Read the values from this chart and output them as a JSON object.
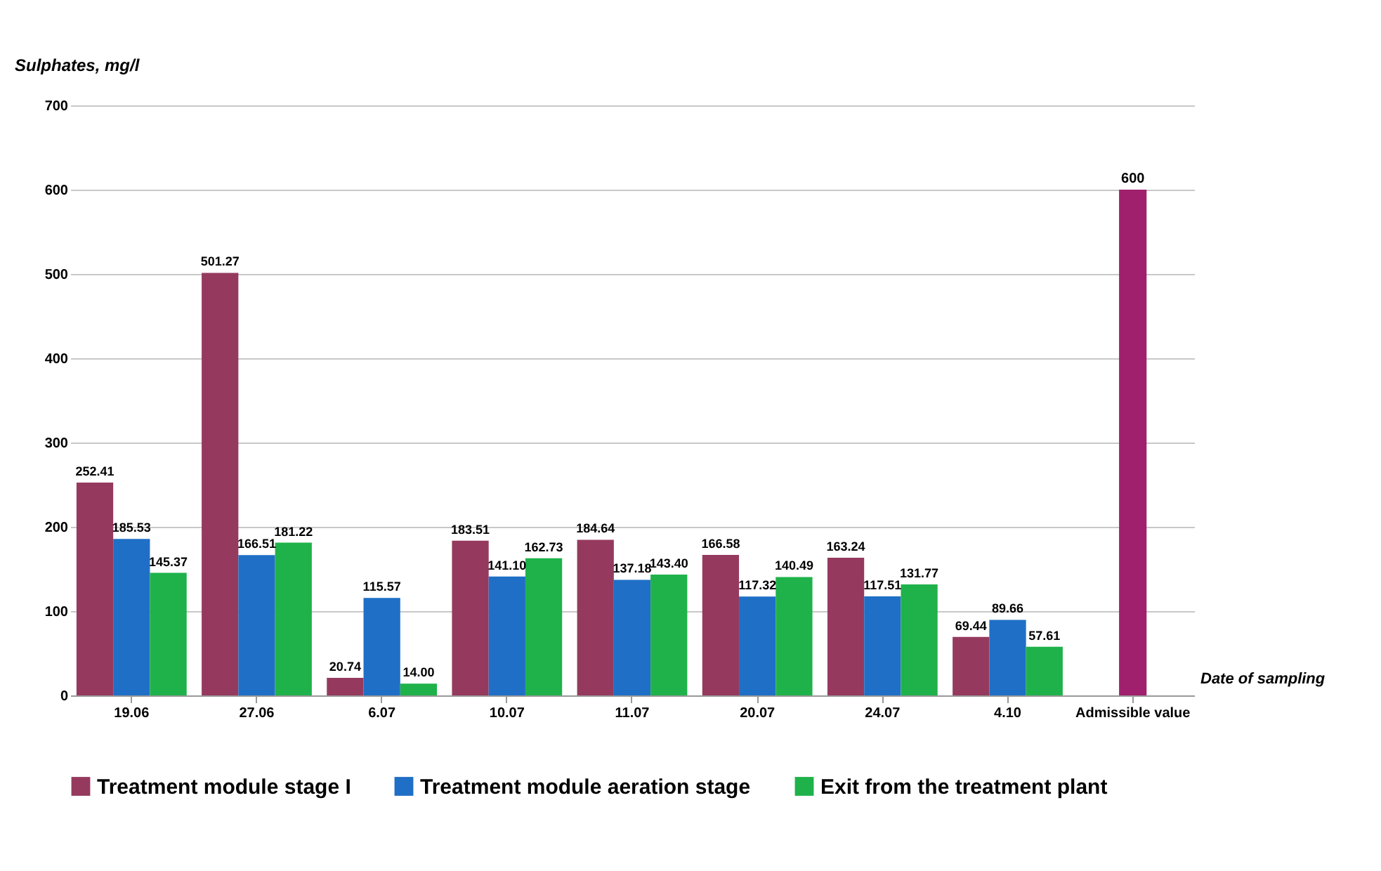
{
  "chart_data": {
    "type": "bar",
    "xlabel": "Date of sampling",
    "ylabel": "Sulphates, mg/l",
    "categories": [
      "19.06",
      "27.06",
      "6.07",
      "10.07",
      "11.07",
      "20.07",
      "24.07",
      "4.10",
      "Admissible value"
    ],
    "series": [
      {
        "name": "Treatment module stage I",
        "color": "#953a5e",
        "values": [
          252.41,
          501.27,
          20.74,
          183.51,
          184.64,
          166.58,
          163.24,
          69.44,
          null
        ],
        "value_labels": [
          "252.41",
          "501.27",
          "20.74",
          "183.51",
          "184.64",
          "166.58",
          "163.24",
          "69.44",
          null
        ]
      },
      {
        "name": "Treatment module aeration stage",
        "color": "#1f6fc6",
        "values": [
          185.53,
          166.51,
          115.57,
          141.1,
          137.18,
          117.32,
          117.51,
          89.66,
          null
        ],
        "value_labels": [
          "185.53",
          "166.51",
          "115.57",
          "141.10",
          "137.18",
          "117.32",
          "117.51",
          "89.66",
          null
        ]
      },
      {
        "name": "Exit from the treatment plant",
        "color": "#1fb24a",
        "values": [
          145.37,
          181.22,
          14.0,
          162.73,
          143.4,
          140.49,
          131.77,
          57.61,
          null
        ],
        "value_labels": [
          "145.37",
          "181.22",
          "14.00",
          "162.73",
          "143.40",
          "140.49",
          "131.77",
          "57.61",
          null
        ]
      },
      {
        "color": "#a0206e",
        "values": [
          null,
          null,
          null,
          null,
          null,
          null,
          null,
          null,
          600
        ],
        "value_labels": [
          null,
          null,
          null,
          null,
          null,
          null,
          null,
          null,
          "600"
        ]
      }
    ],
    "ylim": [
      0,
      700
    ],
    "yticks": [
      0,
      100,
      200,
      300,
      400,
      500,
      600,
      700
    ],
    "grid": "y",
    "legend": "bottom"
  }
}
